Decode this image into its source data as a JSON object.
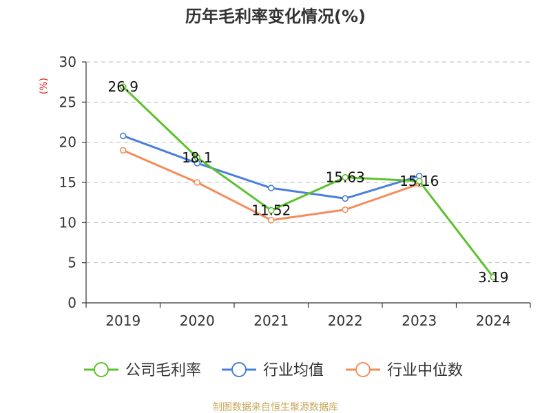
{
  "chart_data": {
    "type": "line",
    "title": "历年毛利率变化情况(%)",
    "ylabel": "(%)",
    "xlabel": "",
    "categories": [
      "2019",
      "2020",
      "2021",
      "2022",
      "2023",
      "2024"
    ],
    "ylim": [
      0,
      30
    ],
    "yticks": [
      0,
      5,
      10,
      15,
      20,
      25,
      30
    ],
    "grid": "horizontal-dashed",
    "legend_position": "bottom",
    "series": [
      {
        "name": "公司毛利率",
        "color": "#5cc22b",
        "values": [
          26.9,
          18.1,
          11.52,
          15.63,
          15.16,
          3.19
        ],
        "labels": [
          "26.9",
          "18.1",
          "11.52",
          "15.63",
          "15.16",
          "3.19"
        ]
      },
      {
        "name": "行业均值",
        "color": "#4a7fdb",
        "values": [
          20.8,
          17.4,
          14.3,
          13.0,
          15.8,
          null
        ]
      },
      {
        "name": "行业中位数",
        "color": "#f58d5b",
        "values": [
          19.0,
          15.0,
          10.3,
          11.6,
          14.8,
          null
        ]
      }
    ]
  },
  "footer": {
    "source": "制图数据来自恒生聚源数据库"
  }
}
